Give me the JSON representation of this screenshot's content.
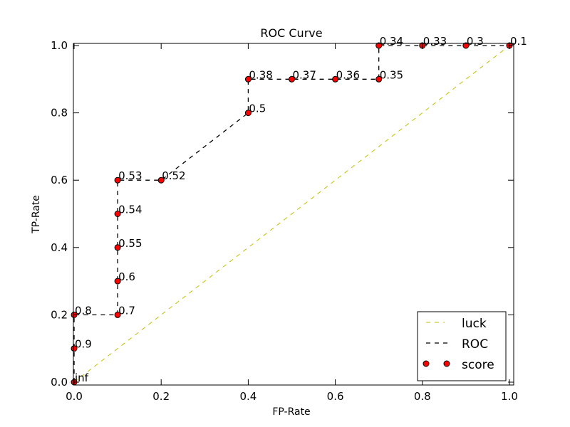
{
  "chart_data": {
    "type": "line",
    "title": "ROC Curve",
    "xlabel": "FP-Rate",
    "ylabel": "TP-Rate",
    "xlim": [
      0.0,
      1.0
    ],
    "ylim": [
      0.0,
      1.0
    ],
    "xticks": [
      "0.0",
      "0.2",
      "0.4",
      "0.6",
      "0.8",
      "1.0"
    ],
    "yticks": [
      "0.0",
      "0.2",
      "0.4",
      "0.6",
      "0.8",
      "1.0"
    ],
    "grid": false,
    "legend_position": "lower-right",
    "series": [
      {
        "name": "luck",
        "style": "dashed",
        "color": "#bfbf00",
        "x": [
          0.0,
          1.0
        ],
        "y": [
          0.0,
          1.0
        ]
      },
      {
        "name": "ROC",
        "style": "dashed",
        "color": "#000000",
        "x": [
          0.0,
          0.0,
          0.0,
          0.1,
          0.1,
          0.1,
          0.1,
          0.1,
          0.2,
          0.4,
          0.4,
          0.5,
          0.6,
          0.7,
          0.7,
          0.8,
          0.9,
          1.0
        ],
        "y": [
          0.0,
          0.1,
          0.2,
          0.2,
          0.3,
          0.4,
          0.5,
          0.6,
          0.6,
          0.8,
          0.9,
          0.9,
          0.9,
          0.9,
          1.0,
          1.0,
          1.0,
          1.0
        ]
      },
      {
        "name": "score",
        "style": "markers",
        "color": "#ff0000",
        "x": [
          0.0,
          0.0,
          0.0,
          0.1,
          0.1,
          0.1,
          0.1,
          0.1,
          0.2,
          0.4,
          0.4,
          0.5,
          0.6,
          0.7,
          0.7,
          0.8,
          0.9,
          1.0
        ],
        "y": [
          0.0,
          0.1,
          0.2,
          0.2,
          0.3,
          0.4,
          0.5,
          0.6,
          0.6,
          0.8,
          0.9,
          0.9,
          0.9,
          0.9,
          1.0,
          1.0,
          1.0,
          1.0
        ],
        "labels": [
          "inf",
          "0.9",
          "0.8",
          "0.7",
          "0.6",
          "0.55",
          "0.54",
          "0.53",
          "0.52",
          "0.5",
          "0.38",
          "0.37",
          "0.36",
          "0.35",
          "0.34",
          "0.33",
          "0.3",
          "0.1"
        ]
      }
    ],
    "legend": [
      "luck",
      "ROC",
      "score"
    ]
  }
}
